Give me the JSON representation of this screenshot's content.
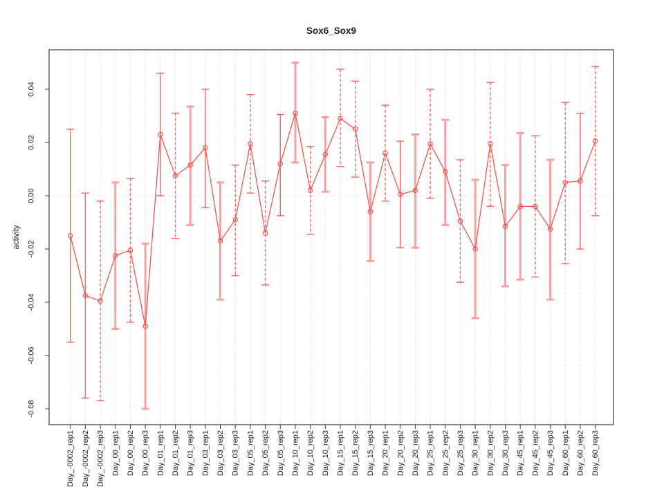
{
  "window": {
    "background": "#ffffff"
  },
  "chart_data": {
    "type": "line",
    "subtype": "points-with-error-bars",
    "title": "Sox6_Sox9",
    "xlabel": "",
    "ylabel": "activity",
    "categories": [
      "Day_-0002_rep1",
      "Day_-0002_rep2",
      "Day_-0002_rep3",
      "Day_00_rep1",
      "Day_00_rep2",
      "Day_00_rep3",
      "Day_01_rep1",
      "Day_01_rep2",
      "Day_01_rep3",
      "Day_03_rep1",
      "Day_03_rep2",
      "Day_03_rep3",
      "Day_05_rep1",
      "Day_05_rep2",
      "Day_05_rep3",
      "Day_10_rep1",
      "Day_10_rep2",
      "Day_10_rep3",
      "Day_15_rep1",
      "Day_15_rep2",
      "Day_15_rep3",
      "Day_20_rep1",
      "Day_20_rep2",
      "Day_20_rep3",
      "Day_25_rep1",
      "Day_25_rep2",
      "Day_25_rep3",
      "Day_30_rep1",
      "Day_30_rep2",
      "Day_30_rep3",
      "Day_45_rep1",
      "Day_45_rep2",
      "Day_45_rep3",
      "Day_60_rep1",
      "Day_60_rep2",
      "Day_60_rep3"
    ],
    "series": [
      {
        "name": "Sox6_Sox9 activity",
        "values": [
          -0.015,
          -0.0375,
          -0.0395,
          -0.0225,
          -0.0205,
          -0.049,
          0.023,
          0.0075,
          0.0115,
          0.018,
          -0.017,
          -0.009,
          0.0195,
          -0.014,
          0.012,
          0.031,
          0.002,
          0.0155,
          0.029,
          0.025,
          -0.006,
          0.016,
          0.0005,
          0.002,
          0.0195,
          0.009,
          -0.0095,
          -0.02,
          0.0195,
          -0.0115,
          -0.004,
          -0.004,
          -0.0125,
          0.005,
          0.0055,
          0.0205
        ],
        "upper": [
          0.025,
          0.001,
          -0.002,
          0.005,
          0.0065,
          -0.018,
          0.046,
          0.031,
          0.0335,
          0.04,
          0.005,
          0.0115,
          0.038,
          0.0055,
          0.0305,
          0.05,
          0.0185,
          0.0295,
          0.0475,
          0.043,
          0.0125,
          0.034,
          0.0205,
          0.023,
          0.04,
          0.0285,
          0.0135,
          0.006,
          0.0425,
          0.0115,
          0.0235,
          0.0225,
          0.0135,
          0.035,
          0.031,
          0.0485
        ],
        "lower": [
          -0.055,
          -0.076,
          -0.077,
          -0.05,
          -0.0475,
          -0.08,
          0.0,
          -0.016,
          -0.011,
          -0.0045,
          -0.039,
          -0.03,
          0.001,
          -0.0335,
          -0.0075,
          0.0125,
          -0.0145,
          0.0015,
          0.011,
          0.007,
          -0.0245,
          -0.002,
          -0.0195,
          -0.0195,
          -0.001,
          -0.011,
          -0.0325,
          -0.046,
          -0.004,
          -0.034,
          -0.0315,
          -0.0305,
          -0.039,
          -0.0255,
          -0.02,
          -0.0075
        ],
        "error_bar_styles": [
          "solid",
          "solid",
          "dashed",
          "thick",
          "dashed",
          "thick",
          "solid",
          "dashed",
          "thick",
          "solid",
          "thick",
          "dashed",
          "dashed",
          "dashed",
          "solid",
          "thick",
          "dashed",
          "thick",
          "dashed",
          "dashed",
          "thick",
          "dashed",
          "solid",
          "thick",
          "dashed",
          "thick",
          "dashed",
          "thick",
          "dashed",
          "thick",
          "thick",
          "dashed",
          "thick",
          "dashed",
          "solid",
          "dashed"
        ]
      }
    ],
    "yticks": [
      0.04,
      0.02,
      0,
      -0.02,
      -0.04,
      -0.06,
      -0.08
    ],
    "ytick_labels": [
      "0.04",
      "0.02",
      "0.00",
      "-0.02",
      "-0.04",
      "-0.06",
      "-0.08"
    ],
    "ylim": [
      -0.086,
      0.053
    ],
    "x_tick_label_rotation_deg": 90,
    "y_tick_label_rotation_deg": 90,
    "marker": "open-circle",
    "legend": null,
    "grid": {
      "vertical": "dotted line at every category",
      "horizontal": "dotted line at 0.00 only"
    },
    "colors": {
      "line": "#f4544f",
      "marker": "#f4544f",
      "error_bar_thin": "#f5625d",
      "error_bar_thick": "#f9a0a0",
      "grid": "#d8d8d8",
      "axis": "#3c3c3c",
      "text": "#1c1c1c",
      "background": "#ffffff"
    }
  }
}
